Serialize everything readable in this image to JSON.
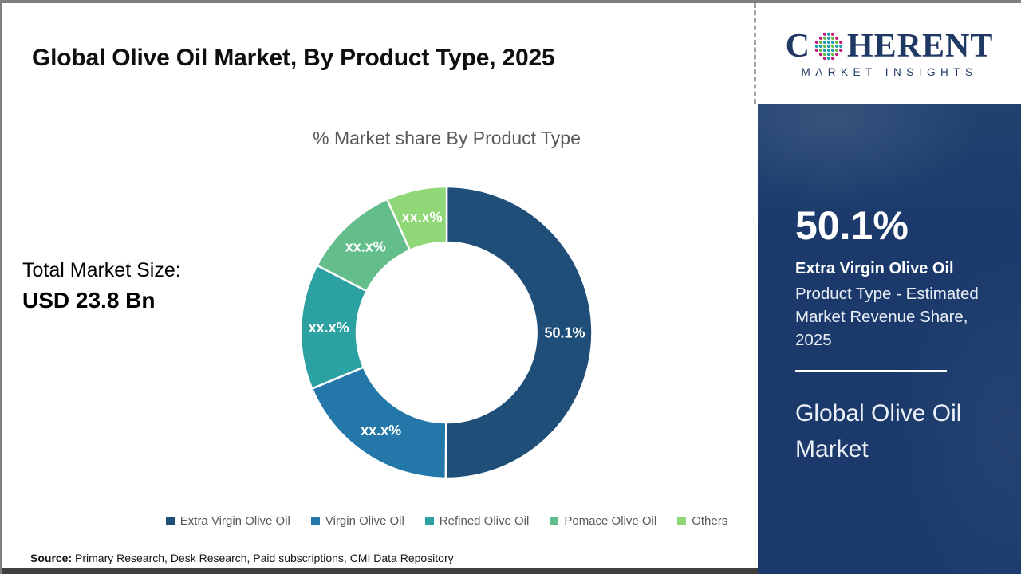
{
  "page": {
    "title": "Global Olive Oil Market, By Product Type, 2025",
    "source": {
      "label": "Source:",
      "text": "Primary Research, Desk Research, Paid subscriptions, CMI Data Repository"
    }
  },
  "logo": {
    "name_prefix": "C",
    "name_suffix": "HERENT",
    "subtitle": "MARKET INSIGHTS",
    "text_color": "#1F3864",
    "globe_colors": {
      "magenta": "#C2187E",
      "teal": "#1E9BA8",
      "green": "#67B646"
    }
  },
  "stats_left": {
    "label": "Total Market Size:",
    "value": "USD 23.8 Bn"
  },
  "chart_data": {
    "type": "pie",
    "subtype": "donut",
    "title": "% Market share By Product Type",
    "categories": [
      "Extra Virgin Olive Oil",
      "Virgin Olive Oil",
      "Refined Olive Oil",
      "Pomace Olive Oil",
      "Others"
    ],
    "values": [
      50.1,
      18.6,
      13.9,
      10.7,
      6.7
    ],
    "values_estimated": true,
    "value_labels": [
      "50.1%",
      "xx.x%",
      "xx.x%",
      "xx.x%",
      "xx.x%"
    ],
    "colors": [
      "#1F4E79",
      "#2378A9",
      "#2BA1A1",
      "#63BE8C",
      "#90D877"
    ],
    "label_color": "#FFFFFF",
    "legend_position": "bottom",
    "start_angle_deg": 0,
    "direction": "clockwise"
  },
  "sidebar": {
    "background": "#1B3A6B",
    "headline_value": "50.1%",
    "headline_label": "Extra Virgin Olive Oil",
    "headline_desc": "Product Type - Estimated Market Revenue Share, 2025",
    "footer_title": "Global Olive Oil Market"
  }
}
